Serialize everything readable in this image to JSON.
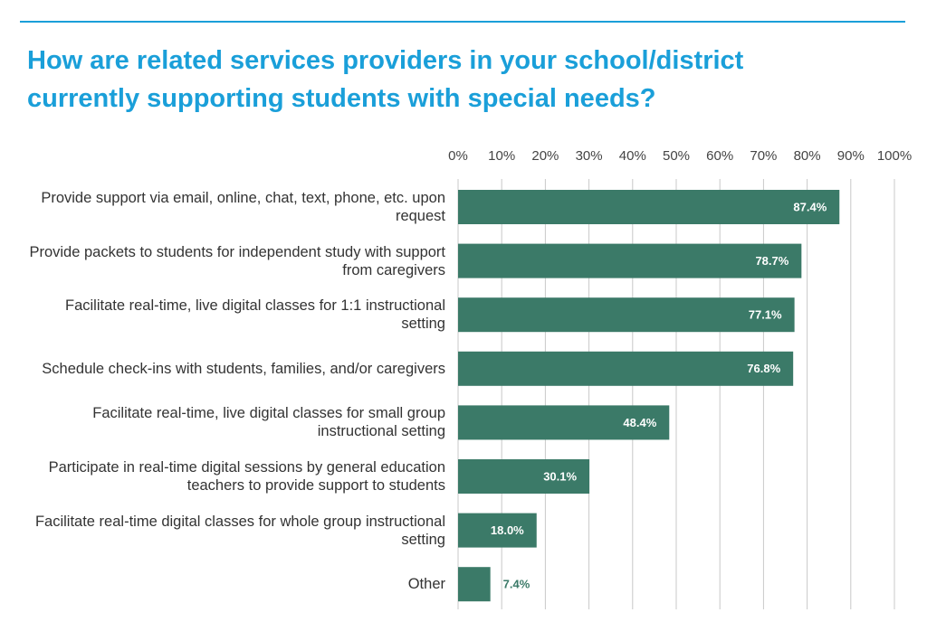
{
  "chart_data": {
    "type": "bar",
    "orientation": "horizontal",
    "title": "How are related services providers in your school/district currently supporting students with special needs?",
    "categories": [
      "Provide support via email, online, chat, text, phone, etc. upon request",
      "Provide packets to students for independent study with support from caregivers",
      "Facilitate real-time, live digital classes for 1:1 instructional setting",
      "Schedule check-ins with students, families, and/or caregivers",
      "Facilitate real-time, live digital classes for small group instructional setting",
      "Participate in real-time digital sessions by general education teachers to provide support to students",
      "Facilitate real-time digital classes for whole group instructional setting",
      "Other"
    ],
    "values": [
      87.4,
      78.7,
      77.1,
      76.8,
      48.4,
      30.1,
      18.0,
      7.4
    ],
    "value_labels": [
      "87.4%",
      "78.7%",
      "77.1%",
      "76.8%",
      "48.4%",
      "30.1%",
      "18.0%",
      "7.4%"
    ],
    "color": "#3b7a68",
    "xlim": [
      0,
      100
    ],
    "xticks": [
      {
        "value": 0,
        "label": "0%"
      },
      {
        "value": 10,
        "label": "10%"
      },
      {
        "value": 20,
        "label": "20%"
      },
      {
        "value": 30,
        "label": "30%"
      },
      {
        "value": 40,
        "label": "40%"
      },
      {
        "value": 50,
        "label": "50%"
      },
      {
        "value": 60,
        "label": "60%"
      },
      {
        "value": 70,
        "label": "70%"
      },
      {
        "value": 80,
        "label": "80%"
      },
      {
        "value": 90,
        "label": "90%"
      },
      {
        "value": 100,
        "label": "100%"
      }
    ],
    "grid": true
  }
}
